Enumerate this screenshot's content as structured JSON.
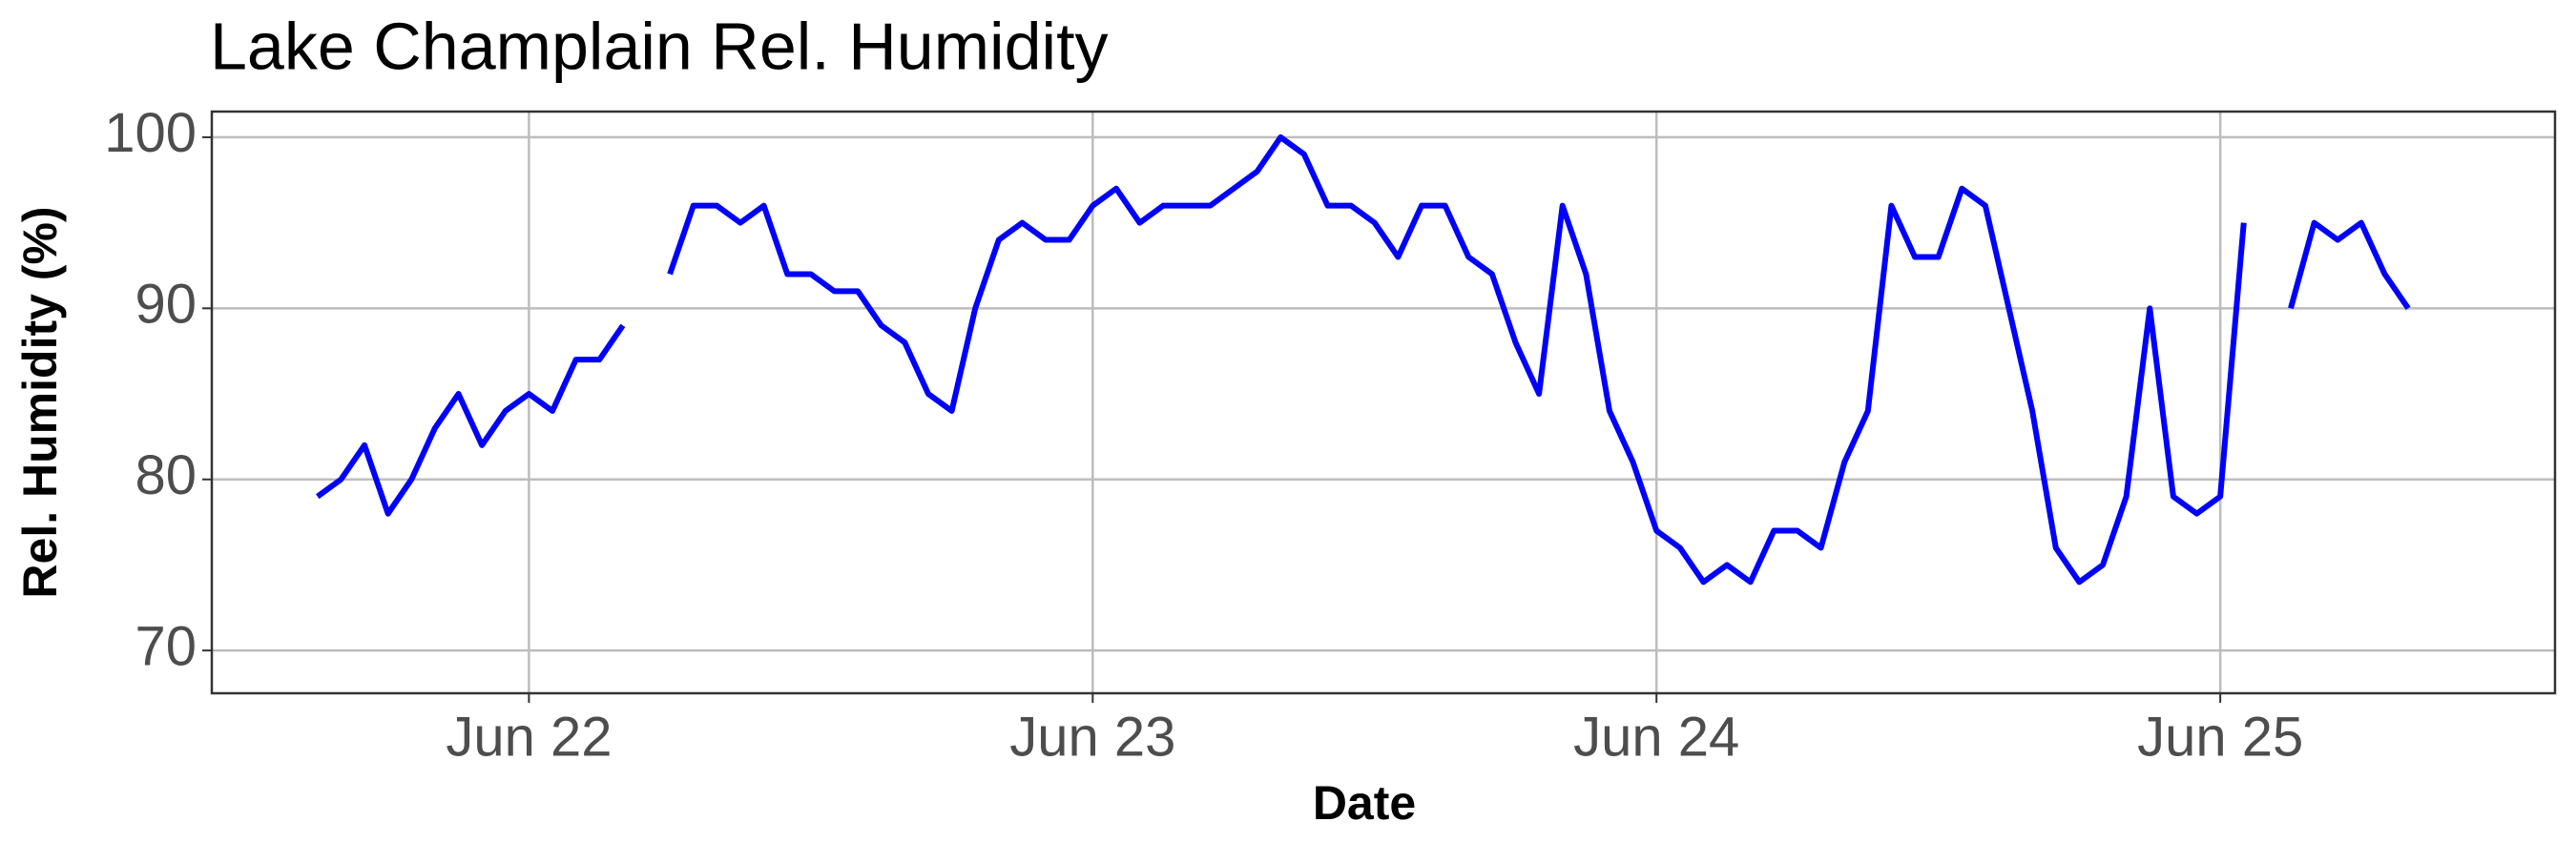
{
  "chart_data": {
    "type": "line",
    "title": "Lake Champlain Rel. Humidity",
    "x_label": "Date",
    "y_label": "Rel. Humidity (%)",
    "color": "#0000ff",
    "grid": true,
    "x": [
      "Jun 21 15:00",
      "Jun 21 16:00",
      "Jun 21 17:00",
      "Jun 21 18:00",
      "Jun 21 19:00",
      "Jun 21 20:00",
      "Jun 21 21:00",
      "Jun 21 22:00",
      "Jun 21 23:00",
      "Jun 22 00:00",
      "Jun 22 01:00",
      "Jun 22 02:00",
      "Jun 22 03:00",
      "Jun 22 04:00",
      "Jun 22 05:00",
      "Jun 22 06:00",
      "Jun 22 07:00",
      "Jun 22 08:00",
      "Jun 22 09:00",
      "Jun 22 10:00",
      "Jun 22 11:00",
      "Jun 22 12:00",
      "Jun 22 13:00",
      "Jun 22 14:00",
      "Jun 22 15:00",
      "Jun 22 16:00",
      "Jun 22 17:00",
      "Jun 22 18:00",
      "Jun 22 19:00",
      "Jun 22 20:00",
      "Jun 22 21:00",
      "Jun 22 22:00",
      "Jun 22 23:00",
      "Jun 23 00:00",
      "Jun 23 01:00",
      "Jun 23 02:00",
      "Jun 23 03:00",
      "Jun 23 04:00",
      "Jun 23 05:00",
      "Jun 23 06:00",
      "Jun 23 07:00",
      "Jun 23 08:00",
      "Jun 23 09:00",
      "Jun 23 10:00",
      "Jun 23 11:00",
      "Jun 23 12:00",
      "Jun 23 13:00",
      "Jun 23 14:00",
      "Jun 23 15:00",
      "Jun 23 16:00",
      "Jun 23 17:00",
      "Jun 23 18:00",
      "Jun 23 19:00",
      "Jun 23 20:00",
      "Jun 23 21:00",
      "Jun 23 22:00",
      "Jun 23 23:00",
      "Jun 24 00:00",
      "Jun 24 01:00",
      "Jun 24 02:00",
      "Jun 24 03:00",
      "Jun 24 04:00",
      "Jun 24 05:00",
      "Jun 24 06:00",
      "Jun 24 07:00",
      "Jun 24 08:00",
      "Jun 24 09:00",
      "Jun 24 10:00",
      "Jun 24 11:00",
      "Jun 24 12:00",
      "Jun 24 13:00",
      "Jun 24 14:00",
      "Jun 24 15:00",
      "Jun 24 16:00",
      "Jun 24 17:00",
      "Jun 24 18:00",
      "Jun 24 19:00",
      "Jun 24 20:00",
      "Jun 24 21:00",
      "Jun 24 22:00",
      "Jun 24 23:00",
      "Jun 25 00:00",
      "Jun 25 01:00",
      "Jun 25 02:00",
      "Jun 25 03:00",
      "Jun 25 04:00",
      "Jun 25 05:00",
      "Jun 25 06:00",
      "Jun 25 07:00",
      "Jun 25 08:00"
    ],
    "values": [
      79,
      80,
      82,
      78,
      80,
      83,
      85,
      82,
      84,
      85,
      84,
      87,
      87,
      89,
      null,
      92,
      96,
      96,
      95,
      96,
      92,
      92,
      91,
      91,
      89,
      88,
      85,
      84,
      90,
      94,
      95,
      94,
      94,
      96,
      97,
      95,
      96,
      96,
      96,
      97,
      98,
      100,
      99,
      96,
      96,
      95,
      93,
      96,
      96,
      93,
      92,
      88,
      85,
      96,
      92,
      84,
      81,
      77,
      76,
      74,
      75,
      74,
      77,
      77,
      76,
      81,
      84,
      96,
      93,
      93,
      97,
      96,
      90,
      84,
      76,
      74,
      75,
      79,
      90,
      79,
      78,
      79,
      95,
      null,
      90,
      95,
      94,
      95,
      92,
      90
    ],
    "xlim": [
      "Jun 21 10:30",
      "Jun 25 14:15"
    ],
    "xticks": [
      "Jun 22",
      "Jun 23",
      "Jun 24",
      "Jun 25"
    ],
    "ylim": [
      67.5,
      101.5
    ],
    "yticks": [
      70,
      80,
      90,
      100
    ]
  }
}
